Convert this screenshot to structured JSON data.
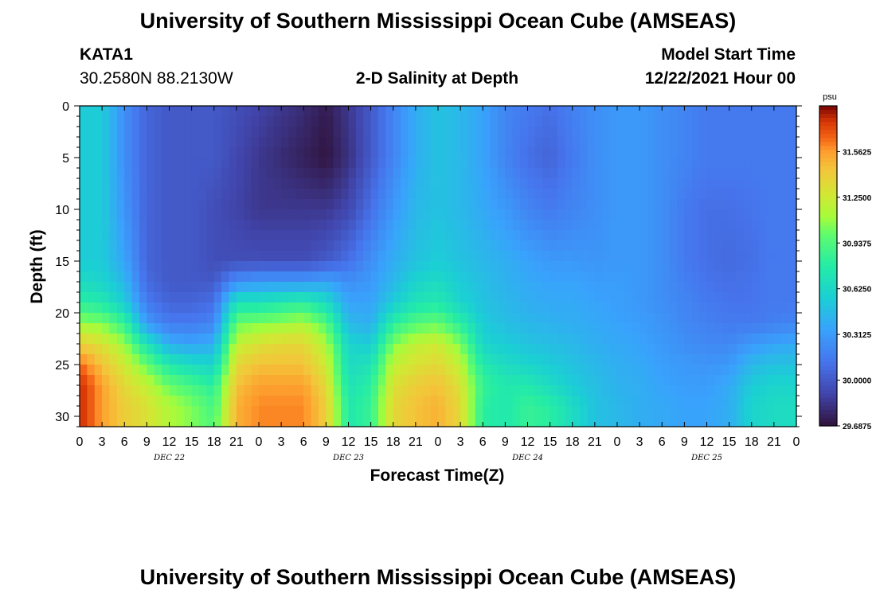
{
  "header": {
    "title": "University of Southern Mississippi Ocean Cube (AMSEAS)",
    "station_name": "KATA1",
    "station_coords": "30.2580N  88.2130W",
    "plot_subtitle": "2-D Salinity at Depth",
    "model_start_label": "Model Start Time",
    "model_start_value": "12/22/2021 Hour 00"
  },
  "footer": {
    "repeated_title": "University of Southern Mississippi Ocean Cube (AMSEAS)"
  },
  "chart_data": {
    "type": "heatmap",
    "title": "2-D Salinity at Depth",
    "xlabel": "Forecast Time(Z)",
    "ylabel": "Depth (ft)",
    "x_hours_range": [
      0,
      96
    ],
    "x_tick_labels": [
      "0",
      "3",
      "6",
      "9",
      "12",
      "15",
      "18",
      "21",
      "0",
      "3",
      "6",
      "9",
      "12",
      "15",
      "18",
      "21",
      "0",
      "3",
      "6",
      "9",
      "12",
      "15",
      "18",
      "21",
      "0",
      "3",
      "6",
      "9",
      "12",
      "15",
      "18",
      "21",
      "0"
    ],
    "x_day_labels": [
      "DEC 22",
      "DEC 23",
      "DEC 24",
      "DEC 25"
    ],
    "y_range": [
      0,
      31
    ],
    "y_ticks": [
      0,
      5,
      10,
      15,
      20,
      25,
      30
    ],
    "y_tick_labels": [
      "0",
      "5",
      "10",
      "15",
      "20",
      "25",
      "30"
    ],
    "colorbar": {
      "unit": "psu",
      "range": [
        29.6875,
        31.875
      ],
      "tick_labels": [
        "31.5625",
        "31.2500",
        "30.9375",
        "30.6250",
        "30.3125",
        "30.0000",
        "29.6875"
      ],
      "ticks": [
        31.5625,
        31.25,
        30.9375,
        30.625,
        30.3125,
        30.0,
        29.6875
      ]
    },
    "grid_hours": [
      0,
      3,
      6,
      9,
      12,
      15,
      18,
      21,
      24,
      27,
      30,
      33,
      36,
      39,
      42,
      45,
      48,
      51,
      54,
      57,
      60,
      63,
      66,
      69,
      72,
      75,
      78,
      81,
      84,
      87,
      90,
      93,
      96
    ],
    "grid_depths_ft": [
      0,
      5,
      10,
      15,
      17,
      19,
      21,
      23,
      25,
      27,
      29,
      31
    ],
    "salinity_psu": [
      [
        30.55,
        30.55,
        30.25,
        30.05,
        30.0,
        30.0,
        30.0,
        29.95,
        29.9,
        29.85,
        29.8,
        29.73,
        29.85,
        30.0,
        30.2,
        30.4,
        30.5,
        30.45,
        30.35,
        30.2,
        30.15,
        30.1,
        30.18,
        30.25,
        30.3,
        30.3,
        30.25,
        30.2,
        30.15,
        30.15,
        30.15,
        30.15,
        30.15
      ],
      [
        30.55,
        30.55,
        30.25,
        30.05,
        30.0,
        30.0,
        30.0,
        29.92,
        29.85,
        29.8,
        29.75,
        29.7,
        29.82,
        30.0,
        30.2,
        30.4,
        30.5,
        30.45,
        30.35,
        30.2,
        30.1,
        30.05,
        30.15,
        30.25,
        30.3,
        30.3,
        30.25,
        30.2,
        30.15,
        30.15,
        30.15,
        30.15,
        30.15
      ],
      [
        30.55,
        30.55,
        30.28,
        30.05,
        30.0,
        30.0,
        29.95,
        29.9,
        29.85,
        29.85,
        29.85,
        29.85,
        29.92,
        30.1,
        30.3,
        30.45,
        30.5,
        30.45,
        30.38,
        30.3,
        30.2,
        30.15,
        30.2,
        30.25,
        30.3,
        30.3,
        30.25,
        30.15,
        30.1,
        30.1,
        30.12,
        30.15,
        30.15
      ],
      [
        30.55,
        30.55,
        30.35,
        30.05,
        30.0,
        30.0,
        29.95,
        29.95,
        29.95,
        29.95,
        29.95,
        30.0,
        30.1,
        30.25,
        30.4,
        30.5,
        30.55,
        30.5,
        30.45,
        30.4,
        30.35,
        30.3,
        30.3,
        30.28,
        30.3,
        30.3,
        30.25,
        30.15,
        30.1,
        30.08,
        30.1,
        30.15,
        30.15
      ],
      [
        30.65,
        30.6,
        30.45,
        30.08,
        30.0,
        30.0,
        30.0,
        30.25,
        30.3,
        30.3,
        30.3,
        30.35,
        30.25,
        30.3,
        30.45,
        30.6,
        30.65,
        30.55,
        30.48,
        30.42,
        30.38,
        30.35,
        30.35,
        30.32,
        30.32,
        30.3,
        30.25,
        30.18,
        30.12,
        30.1,
        30.12,
        30.15,
        30.15
      ],
      [
        30.8,
        30.75,
        30.55,
        30.15,
        30.05,
        30.05,
        30.1,
        30.7,
        30.7,
        30.75,
        30.8,
        30.65,
        30.35,
        30.35,
        30.55,
        30.7,
        30.75,
        30.6,
        30.5,
        30.45,
        30.4,
        30.38,
        30.38,
        30.35,
        30.33,
        30.3,
        30.25,
        30.2,
        30.15,
        30.12,
        30.12,
        30.15,
        30.15
      ],
      [
        31.1,
        31.05,
        30.85,
        30.3,
        30.15,
        30.15,
        30.2,
        31.0,
        31.05,
        31.1,
        31.15,
        30.95,
        30.45,
        30.4,
        30.8,
        30.95,
        31.0,
        30.8,
        30.55,
        30.48,
        30.45,
        30.42,
        30.4,
        30.38,
        30.35,
        30.32,
        30.28,
        30.22,
        30.18,
        30.15,
        30.15,
        30.18,
        30.2
      ],
      [
        31.4,
        31.3,
        31.1,
        30.7,
        30.4,
        30.35,
        30.4,
        31.2,
        31.3,
        31.35,
        31.35,
        31.15,
        30.6,
        30.55,
        31.05,
        31.2,
        31.25,
        31.05,
        30.6,
        30.55,
        30.5,
        30.48,
        30.45,
        30.4,
        30.38,
        30.35,
        30.3,
        30.25,
        30.22,
        30.22,
        30.3,
        30.35,
        30.38
      ],
      [
        31.65,
        31.45,
        31.25,
        31.0,
        30.75,
        30.65,
        30.6,
        31.35,
        31.45,
        31.45,
        31.45,
        31.25,
        30.65,
        30.7,
        31.2,
        31.3,
        31.35,
        31.2,
        30.75,
        30.65,
        30.6,
        30.55,
        30.5,
        30.45,
        30.4,
        30.38,
        30.33,
        30.3,
        30.28,
        30.3,
        30.45,
        30.5,
        30.5
      ],
      [
        31.8,
        31.55,
        31.35,
        31.2,
        31.0,
        30.9,
        30.8,
        31.45,
        31.55,
        31.55,
        31.55,
        31.35,
        30.7,
        30.8,
        31.3,
        31.4,
        31.45,
        31.3,
        30.85,
        30.75,
        30.75,
        30.65,
        30.55,
        30.48,
        30.42,
        30.4,
        30.35,
        30.32,
        30.32,
        30.38,
        30.55,
        30.6,
        30.6
      ],
      [
        31.8,
        31.55,
        31.4,
        31.3,
        31.15,
        31.05,
        30.9,
        31.5,
        31.6,
        31.6,
        31.6,
        31.4,
        30.75,
        30.85,
        31.35,
        31.45,
        31.5,
        31.35,
        30.8,
        30.75,
        30.85,
        30.8,
        30.65,
        30.5,
        30.45,
        30.4,
        30.38,
        30.35,
        30.35,
        30.4,
        30.6,
        30.65,
        30.65
      ],
      [
        31.8,
        31.55,
        31.4,
        31.3,
        31.15,
        31.05,
        30.95,
        31.5,
        31.6,
        31.6,
        31.6,
        31.4,
        30.75,
        30.85,
        31.35,
        31.45,
        31.5,
        31.35,
        30.8,
        30.75,
        30.85,
        30.8,
        30.65,
        30.5,
        30.45,
        30.4,
        30.38,
        30.35,
        30.35,
        30.4,
        30.6,
        30.65,
        30.65
      ]
    ]
  }
}
